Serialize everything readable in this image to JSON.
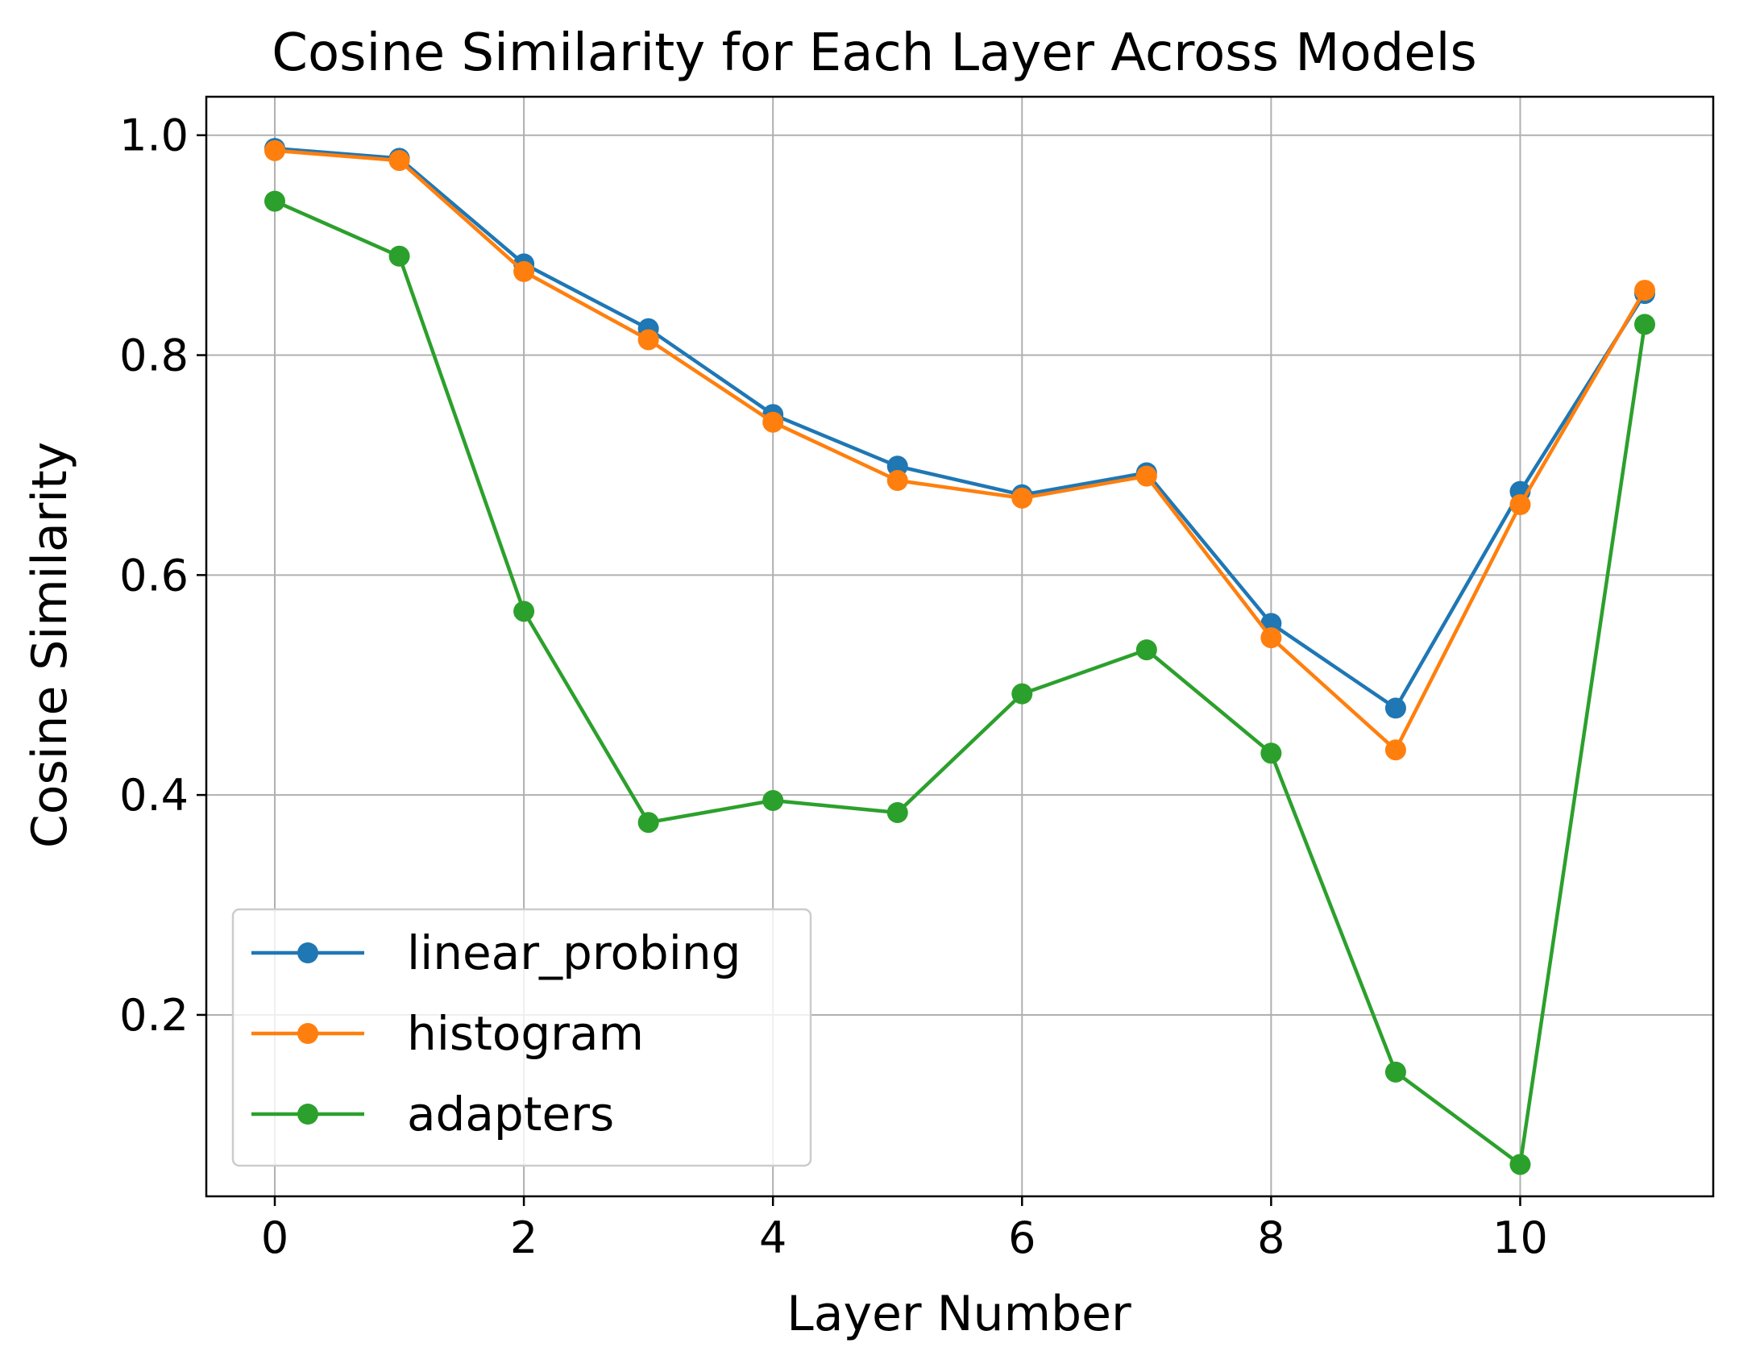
{
  "chart_data": {
    "type": "line",
    "title": "Cosine Similarity for Each Layer Across Models",
    "xlabel": "Layer Number",
    "ylabel": "Cosine Similarity",
    "xlim": [
      -0.55,
      11.55
    ],
    "ylim": [
      0.035,
      1.035
    ],
    "xticks": [
      0,
      2,
      4,
      6,
      8,
      10
    ],
    "xtick_labels": [
      "0",
      "2",
      "4",
      "6",
      "8",
      "10"
    ],
    "yticks": [
      0.2,
      0.4,
      0.6,
      0.8,
      1.0
    ],
    "ytick_labels": [
      "0.2",
      "0.4",
      "0.6",
      "0.8",
      "1.0"
    ],
    "grid": true,
    "legend_position": "bottom-left",
    "x": [
      0,
      1,
      2,
      3,
      4,
      5,
      6,
      7,
      8,
      9,
      10,
      11
    ],
    "series": [
      {
        "name": "linear_probing",
        "color": "#1f77b4",
        "values": [
          0.988,
          0.979,
          0.883,
          0.824,
          0.746,
          0.699,
          0.673,
          0.693,
          0.556,
          0.479,
          0.676,
          0.856
        ]
      },
      {
        "name": "histogram",
        "color": "#ff7f0e",
        "values": [
          0.986,
          0.977,
          0.876,
          0.814,
          0.739,
          0.686,
          0.67,
          0.69,
          0.543,
          0.441,
          0.664,
          0.859
        ]
      },
      {
        "name": "adapters",
        "color": "#2ca02c",
        "values": [
          0.94,
          0.89,
          0.567,
          0.375,
          0.395,
          0.384,
          0.492,
          0.532,
          0.438,
          0.148,
          0.064,
          0.828
        ]
      }
    ]
  }
}
